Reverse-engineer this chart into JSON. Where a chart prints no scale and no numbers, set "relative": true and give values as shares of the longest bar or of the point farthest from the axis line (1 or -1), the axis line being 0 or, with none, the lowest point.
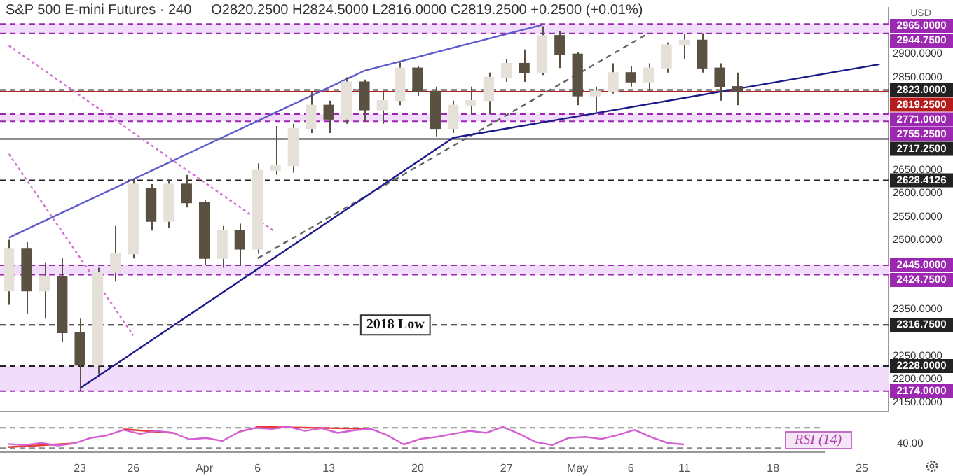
{
  "chart_data": [
    {
      "type": "candlestick",
      "title": "S&P 500 E-mini Futures · 240",
      "ylabel": "USD",
      "annotations": [
        "O2820.2500 H2824.5000 L2816.0000 C2819.2500 +0.2500 (+0.01%)",
        {
          "text": "2018 Low",
          "y": 2316.75
        }
      ],
      "categories": [
        null,
        null,
        null,
        null,
        "23",
        null,
        null,
        "26",
        null,
        null,
        null,
        "Apr",
        null,
        null,
        "6",
        null,
        null,
        null,
        "13",
        null,
        null,
        null,
        null,
        "20",
        null,
        null,
        null,
        null,
        "27",
        null,
        null,
        null,
        "May",
        null,
        null,
        "6",
        null,
        null,
        "11",
        null,
        null,
        null,
        null,
        "18",
        null,
        null,
        null,
        null,
        "25",
        null
      ],
      "ohlc": [
        [
          2390,
          2500,
          2360,
          2480
        ],
        [
          2480,
          2495,
          2340,
          2390
        ],
        [
          2390,
          2450,
          2330,
          2420
        ],
        [
          2420,
          2460,
          2280,
          2300
        ],
        [
          2300,
          2330,
          2174,
          2230
        ],
        [
          2230,
          2440,
          2210,
          2430
        ],
        [
          2430,
          2530,
          2410,
          2470
        ],
        [
          2470,
          2632,
          2460,
          2620
        ],
        [
          2610,
          2620,
          2520,
          2540
        ],
        [
          2540,
          2630,
          2525,
          2620
        ],
        [
          2620,
          2640,
          2570,
          2580
        ],
        [
          2580,
          2585,
          2445,
          2460
        ],
        [
          2460,
          2530,
          2440,
          2520
        ],
        [
          2520,
          2535,
          2445,
          2480
        ],
        [
          2480,
          2665,
          2470,
          2650
        ],
        [
          2650,
          2745,
          2640,
          2660
        ],
        [
          2660,
          2750,
          2645,
          2740
        ],
        [
          2740,
          2818,
          2730,
          2790
        ],
        [
          2790,
          2800,
          2730,
          2760
        ],
        [
          2760,
          2850,
          2750,
          2840
        ],
        [
          2840,
          2845,
          2755,
          2780
        ],
        [
          2780,
          2820,
          2750,
          2800
        ],
        [
          2800,
          2882,
          2790,
          2870
        ],
        [
          2870,
          2875,
          2810,
          2820
        ],
        [
          2820,
          2830,
          2723,
          2740
        ],
        [
          2740,
          2800,
          2730,
          2790
        ],
        [
          2790,
          2830,
          2770,
          2800
        ],
        [
          2800,
          2860,
          2770,
          2850
        ],
        [
          2850,
          2890,
          2840,
          2880
        ],
        [
          2880,
          2910,
          2840,
          2860
        ],
        [
          2860,
          2960,
          2855,
          2940
        ],
        [
          2940,
          2950,
          2870,
          2900
        ],
        [
          2900,
          2905,
          2790,
          2810
        ],
        [
          2810,
          2830,
          2775,
          2820
        ],
        [
          2820,
          2880,
          2815,
          2860
        ],
        [
          2860,
          2875,
          2830,
          2840
        ],
        [
          2840,
          2880,
          2820,
          2870
        ],
        [
          2870,
          2925,
          2860,
          2920
        ],
        [
          2920,
          2944,
          2890,
          2930
        ],
        [
          2930,
          2945,
          2860,
          2870
        ],
        [
          2870,
          2880,
          2800,
          2830
        ],
        [
          2830,
          2860,
          2790,
          2819.25
        ],
        null,
        null,
        null,
        null,
        null,
        null,
        null,
        null
      ],
      "color": "#5b5142",
      "colors": [
        "#e6e1d8",
        "#5b5142",
        "#e6e1d8",
        "#5b5142",
        "#5b5142",
        "#e6e1d8",
        "#e6e1d8",
        "#e6e1d8",
        "#5b5142",
        "#e6e1d8",
        "#5b5142",
        "#5b5142",
        "#e6e1d8",
        "#5b5142",
        "#e6e1d8",
        "#e6e1d8",
        "#e6e1d8",
        "#e6e1d8",
        "#5b5142",
        "#e6e1d8",
        "#5b5142",
        "#e6e1d8",
        "#e6e1d8",
        "#5b5142",
        "#5b5142",
        "#e6e1d8",
        "#e6e1d8",
        "#e6e1d8",
        "#e6e1d8",
        "#5b5142",
        "#e6e1d8",
        "#5b5142",
        "#5b5142",
        "#e6e1d8",
        "#e6e1d8",
        "#5b5142",
        "#e6e1d8",
        "#e6e1d8",
        "#e6e1d8",
        "#5b5142",
        "#5b5142",
        "#5b5142",
        null,
        null,
        null,
        null,
        null,
        null,
        null,
        null
      ],
      "ylim": [
        2130,
        3000
      ],
      "yticks": [
        {
          "value": 2150,
          "label": "2150.0000"
        },
        {
          "value": 2200,
          "label": "2200.0000"
        },
        {
          "value": 2250,
          "label": "2250.0000"
        },
        {
          "value": 2350,
          "label": "2350.0000"
        },
        {
          "value": 2500,
          "label": "2500.0000"
        },
        {
          "value": 2550,
          "label": "2550.0000"
        },
        {
          "value": 2600,
          "label": "2600.0000"
        },
        {
          "value": 2650,
          "label": "2650.0000"
        },
        {
          "value": 2850,
          "label": "2850.0000"
        },
        {
          "value": 2900,
          "label": "2900.0000"
        }
      ],
      "legend": false,
      "series": [
        {
          "type": "line",
          "color": "#5c5ccc",
          "line_style": "solid",
          "values": [
            2505,
            null,
            null,
            null,
            null,
            null,
            null,
            null,
            null,
            null,
            null,
            null,
            null,
            null,
            null,
            null,
            null,
            null,
            null,
            null,
            2864,
            null,
            null,
            null,
            null,
            null,
            null,
            null,
            null,
            null,
            2963,
            null,
            null,
            null,
            null,
            null,
            null,
            null,
            null,
            null,
            null,
            null,
            null,
            null,
            null,
            null,
            null,
            null,
            null,
            null
          ]
        },
        {
          "type": "line",
          "color": "#1a1a8c",
          "line_style": "solid",
          "values": [
            null,
            null,
            null,
            null,
            2180,
            null,
            null,
            null,
            null,
            null,
            null,
            null,
            null,
            null,
            null,
            null,
            null,
            null,
            null,
            null,
            null,
            null,
            null,
            null,
            null,
            2720,
            null,
            null,
            null,
            null,
            null,
            null,
            null,
            null,
            null,
            null,
            null,
            null,
            null,
            null,
            null,
            null,
            null,
            null,
            null,
            null,
            null,
            null,
            null,
            2878
          ]
        },
        {
          "type": "line",
          "color": "#666666",
          "line_style": "dashed",
          "values": [
            null,
            null,
            null,
            null,
            null,
            null,
            null,
            null,
            null,
            null,
            null,
            null,
            null,
            null,
            2460,
            null,
            null,
            null,
            null,
            null,
            null,
            null,
            null,
            null,
            null,
            null,
            null,
            null,
            null,
            null,
            null,
            null,
            null,
            null,
            null,
            null,
            2945,
            null,
            null,
            null,
            null,
            null,
            null,
            null,
            null,
            null,
            null,
            null,
            null,
            null
          ]
        },
        {
          "type": "line",
          "color": "#d070d0",
          "line_style": "dotted",
          "values": [
            2918,
            null,
            null,
            null,
            null,
            null,
            null,
            null,
            null,
            null,
            null,
            null,
            null,
            null,
            null,
            2517,
            null,
            null,
            null,
            null,
            null,
            null,
            null,
            null,
            null,
            null,
            null,
            null,
            null,
            null,
            null,
            null,
            null,
            null,
            null,
            null,
            null,
            null,
            null,
            null,
            null,
            null,
            null,
            null,
            null,
            null,
            null,
            null,
            null,
            null
          ]
        },
        {
          "type": "line",
          "color": "#d070d0",
          "line_style": "dotted",
          "values": [
            2685,
            null,
            null,
            null,
            null,
            null,
            null,
            2294,
            null,
            null,
            null,
            null,
            null,
            null,
            null,
            null,
            null,
            null,
            null,
            null,
            null,
            null,
            null,
            null,
            null,
            null,
            null,
            null,
            null,
            null,
            null,
            null,
            null,
            null,
            null,
            null,
            null,
            null,
            null,
            null,
            null,
            null,
            null,
            null,
            null,
            null,
            null,
            null,
            null,
            null
          ]
        }
      ],
      "bands": [
        {
          "axis": "y",
          "from": 2944.75,
          "to": 2965,
          "color": "#f1dcfb"
        },
        {
          "axis": "y",
          "from": 2755.25,
          "to": 2771,
          "color": "#f1dcfb"
        },
        {
          "axis": "y",
          "from": 2424.75,
          "to": 2445,
          "color": "#f1dcfb"
        },
        {
          "axis": "y",
          "from": 2174,
          "to": 2228,
          "color": "#f1dcfb"
        }
      ],
      "ref_lines": [
        {
          "axis": "y",
          "value": 2965,
          "label": "2965.0000",
          "color": "#9c27b0",
          "line_style": "dashed"
        },
        {
          "axis": "y",
          "value": 2944.75,
          "label": "2944.7500",
          "color": "#9c27b0",
          "line_style": "dashed"
        },
        {
          "axis": "y",
          "value": 2823,
          "label": "2823.0000",
          "color": "#222222",
          "line_style": "dashed"
        },
        {
          "axis": "y",
          "value": 2819.25,
          "label": "2819.2500",
          "color": "#b71c1c",
          "line_style": "solid"
        },
        {
          "axis": "y",
          "value": 2771,
          "label": "2771.0000",
          "color": "#9c27b0",
          "line_style": "dashed"
        },
        {
          "axis": "y",
          "value": 2755.25,
          "label": "2755.2500",
          "color": "#9c27b0",
          "line_style": "dashed"
        },
        {
          "axis": "y",
          "value": 2717.25,
          "label": "2717.2500",
          "color": "#222222",
          "line_style": "solid"
        },
        {
          "axis": "y",
          "value": 2628.4126,
          "label": "2628.4126",
          "color": "#222222",
          "line_style": "dashed"
        },
        {
          "axis": "y",
          "value": 2445,
          "label": "2445.0000",
          "color": "#9c27b0",
          "line_style": "dashed"
        },
        {
          "axis": "y",
          "value": 2424.75,
          "label": "2424.7500",
          "color": "#9c27b0",
          "line_style": "dashed"
        },
        {
          "axis": "y",
          "value": 2316.75,
          "label": "2316.7500",
          "color": "#222222",
          "line_style": "dashed"
        },
        {
          "axis": "y",
          "value": 2228,
          "label": "2228.0000",
          "color": "#222222",
          "line_style": "dashed"
        },
        {
          "axis": "y",
          "value": 2174,
          "label": "2174.0000",
          "color": "#9c27b0",
          "line_style": "dashed"
        }
      ]
    },
    {
      "type": "line",
      "annotations": [
        "RSI (14)",
        "40.00"
      ],
      "relative": true,
      "categories": [
        null,
        null,
        null,
        null,
        null,
        null,
        null,
        null,
        null,
        null,
        null,
        null,
        null,
        null,
        null,
        null,
        null,
        null,
        null,
        null,
        null,
        null,
        null,
        null,
        null,
        null,
        null,
        null,
        null,
        null,
        null,
        null,
        null,
        null,
        null,
        null,
        null,
        null,
        null,
        null,
        null,
        null,
        null,
        null,
        null,
        null,
        null,
        null,
        null,
        null
      ],
      "legend": false,
      "series": [
        {
          "type": "line",
          "color": "#d35fd3",
          "line_style": "solid",
          "values": [
            0.15,
            0.1,
            0.2,
            0.08,
            0.18,
            0.45,
            0.58,
            0.85,
            0.65,
            0.8,
            0.7,
            0.38,
            0.45,
            0.3,
            0.75,
            0.95,
            0.9,
            1,
            0.8,
            0.93,
            0.7,
            0.83,
            0.9,
            0.58,
            0.13,
            0.4,
            0.5,
            0.65,
            0.8,
            0.7,
            1,
            0.65,
            0.25,
            0.1,
            0.45,
            0.5,
            0.4,
            0.6,
            0.85,
            0.5,
            0.2,
            0.13,
            null,
            null,
            null,
            null,
            null,
            null,
            null,
            null
          ]
        },
        {
          "type": "line",
          "color": "#e53935",
          "line_style": "solid",
          "values": [
            0,
            null,
            null,
            null,
            0.18,
            null,
            null,
            null,
            null,
            null,
            null,
            null,
            null,
            null,
            null,
            null,
            null,
            null,
            null,
            null,
            null,
            null,
            null,
            null,
            null,
            null,
            null,
            null,
            null,
            null,
            null,
            null,
            null,
            null,
            null,
            null,
            null,
            null,
            null,
            null,
            null,
            null,
            null,
            null,
            null,
            null,
            null,
            null,
            null,
            null
          ]
        },
        {
          "type": "line",
          "color": "#e53935",
          "line_style": "solid",
          "values": [
            null,
            null,
            null,
            null,
            null,
            null,
            null,
            0.88,
            null,
            null,
            0.7,
            null,
            null,
            null,
            null,
            null,
            null,
            null,
            null,
            null,
            null,
            null,
            null,
            null,
            null,
            null,
            null,
            null,
            null,
            null,
            null,
            null,
            null,
            null,
            null,
            null,
            null,
            null,
            null,
            null,
            null,
            null,
            null,
            null,
            null,
            null,
            null,
            null,
            null,
            null
          ]
        },
        {
          "type": "line",
          "color": "#e53935",
          "line_style": "solid",
          "values": [
            null,
            null,
            null,
            null,
            null,
            null,
            null,
            null,
            null,
            null,
            null,
            null,
            null,
            null,
            null,
            1,
            null,
            null,
            null,
            null,
            null,
            null,
            0.9,
            null,
            null,
            null,
            null,
            null,
            null,
            null,
            null,
            null,
            null,
            null,
            null,
            null,
            null,
            null,
            null,
            null,
            null,
            null,
            null,
            null,
            null,
            null,
            null,
            null,
            null,
            null
          ]
        }
      ],
      "ref_lines": [
        {
          "axis": "y",
          "value": 0.95,
          "color": "#888888",
          "line_style": "dashed"
        },
        {
          "axis": "y",
          "value": -0.05,
          "color": "#888888",
          "line_style": "dashed"
        }
      ]
    }
  ]
}
